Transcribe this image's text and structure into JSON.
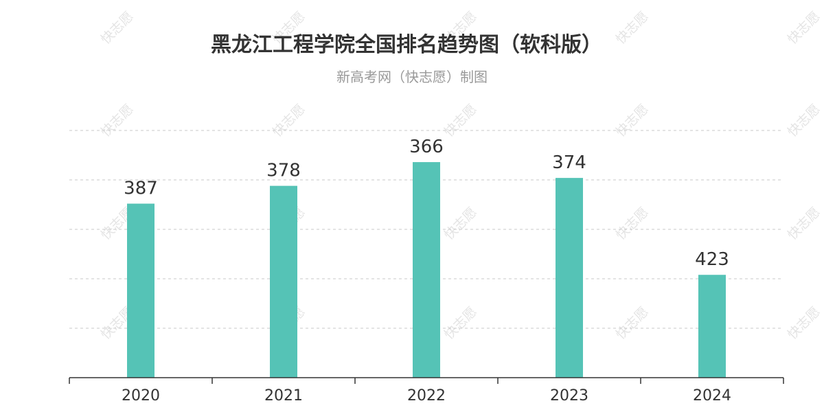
{
  "chart_data": {
    "type": "bar",
    "title": "黑龙江工程学院全国排名趋势图（软科版）",
    "subtitle": "新高考网（快志愿）制图",
    "categories": [
      "2020",
      "2021",
      "2022",
      "2023",
      "2024"
    ],
    "values": [
      387,
      378,
      366,
      374,
      423
    ],
    "y_axis": "inverted rank",
    "ylim": [
      475,
      350
    ],
    "gridlines": true,
    "grid_style": "dashed",
    "bar_color": "#55c3b6",
    "watermark": "快志愿"
  }
}
